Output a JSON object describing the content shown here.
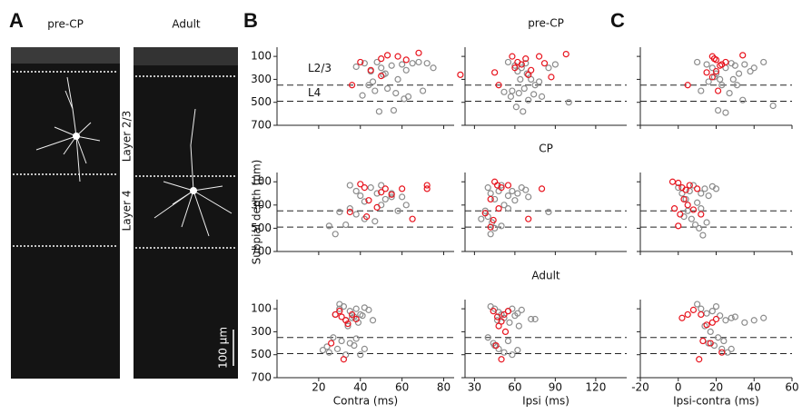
{
  "figure": {
    "panel_labels": [
      "A",
      "B",
      "C"
    ],
    "image_labels": [
      "pre-CP",
      "Adult"
    ],
    "layer_labels": [
      "Layer 2/3",
      "Layer 4"
    ],
    "scale_bar": "100 μm"
  },
  "chart_data": [
    {
      "type": "scatter",
      "xlim": [
        0,
        85
      ],
      "ylim": [
        700,
        20
      ],
      "xticks": [
        20,
        40,
        60,
        80
      ],
      "yticks": [
        100,
        300,
        500,
        700
      ],
      "x_tick_labels": false,
      "y_tick_labels": true,
      "hlines": [
        350,
        490
      ],
      "annotations": [
        "L2/3",
        "L4"
      ],
      "series": [
        {
          "color": "#8c8c8c",
          "x": [
            38,
            42,
            45,
            48,
            50,
            52,
            55,
            58,
            60,
            62,
            65,
            68,
            72,
            75,
            44,
            47,
            53,
            57,
            63,
            41,
            49,
            56,
            61,
            70,
            46,
            51
          ],
          "values": [
            190,
            160,
            230,
            150,
            200,
            250,
            180,
            300,
            170,
            220,
            160,
            150,
            160,
            200,
            350,
            400,
            380,
            420,
            450,
            440,
            580,
            570,
            470,
            400,
            320,
            260
          ]
        },
        {
          "color": "#e8141e",
          "x": [
            40,
            45,
            50,
            53,
            58,
            62,
            68,
            50,
            88,
            36
          ],
          "values": [
            150,
            220,
            120,
            90,
            100,
            130,
            70,
            270,
            260,
            350
          ]
        }
      ]
    },
    {
      "type": "scatter",
      "title": "pre-CP",
      "xlim": [
        23,
        143
      ],
      "ylim": [
        700,
        20
      ],
      "xticks": [
        30,
        60,
        90,
        120
      ],
      "yticks": [
        100,
        300,
        500,
        700
      ],
      "x_tick_labels": false,
      "y_tick_labels": false,
      "hlines": [
        350,
        490
      ],
      "series": [
        {
          "color": "#8c8c8c",
          "x": [
            55,
            60,
            62,
            65,
            68,
            70,
            72,
            75,
            58,
            63,
            67,
            78,
            85,
            90,
            52,
            57,
            61,
            66,
            70,
            74,
            80,
            100,
            64,
            69
          ],
          "values": [
            150,
            180,
            230,
            200,
            160,
            260,
            300,
            350,
            400,
            420,
            380,
            320,
            200,
            170,
            410,
            450,
            540,
            580,
            480,
            430,
            450,
            500,
            300,
            250
          ]
        },
        {
          "color": "#e8141e",
          "x": [
            58,
            62,
            65,
            68,
            72,
            78,
            82,
            98,
            45,
            60,
            70,
            87,
            48
          ],
          "values": [
            100,
            150,
            170,
            120,
            220,
            100,
            160,
            80,
            240,
            200,
            260,
            280,
            350
          ]
        }
      ]
    },
    {
      "type": "scatter",
      "xlim": [
        -20,
        60
      ],
      "ylim": [
        700,
        20
      ],
      "xticks": [
        -20,
        0,
        20,
        40,
        60
      ],
      "yticks": [
        100,
        300,
        500,
        700
      ],
      "x_tick_labels": false,
      "y_tick_labels": false,
      "hlines": [
        350,
        490
      ],
      "series": [
        {
          "color": "#8c8c8c",
          "x": [
            10,
            15,
            18,
            20,
            22,
            25,
            28,
            30,
            32,
            35,
            38,
            40,
            45,
            12,
            16,
            19,
            23,
            27,
            31,
            34,
            50,
            21,
            25,
            29
          ],
          "values": [
            150,
            170,
            200,
            250,
            300,
            200,
            160,
            180,
            250,
            170,
            230,
            200,
            150,
            400,
            320,
            280,
            350,
            420,
            350,
            480,
            530,
            570,
            590,
            300
          ]
        },
        {
          "color": "#e8141e",
          "x": [
            15,
            18,
            20,
            22,
            20,
            25,
            34,
            5,
            18,
            21,
            19,
            23
          ],
          "values": [
            240,
            100,
            130,
            180,
            230,
            150,
            90,
            350,
            280,
            400,
            120,
            170
          ]
        }
      ]
    },
    {
      "type": "scatter",
      "ylabel": "Subpial depth (μm)",
      "xlim": [
        0,
        85
      ],
      "ylim": [
        700,
        20
      ],
      "xticks": [
        20,
        40,
        60,
        80
      ],
      "yticks": [
        100,
        300,
        500,
        700
      ],
      "x_tick_labels": false,
      "y_tick_labels": true,
      "hlines": [
        350,
        490
      ],
      "series": [
        {
          "color": "#8c8c8c",
          "x": [
            35,
            38,
            40,
            42,
            45,
            48,
            50,
            52,
            55,
            58,
            60,
            35,
            38,
            42,
            47,
            30,
            33,
            25,
            28,
            55,
            62,
            50
          ],
          "values": [
            130,
            180,
            220,
            270,
            150,
            200,
            300,
            250,
            200,
            350,
            230,
            330,
            380,
            420,
            440,
            360,
            470,
            480,
            550,
            230,
            300,
            130
          ]
        },
        {
          "color": "#e8141e",
          "x": [
            40,
            42,
            44,
            50,
            52,
            55,
            60,
            72,
            35,
            43,
            48,
            65,
            72
          ],
          "values": [
            120,
            150,
            260,
            190,
            160,
            210,
            160,
            160,
            360,
            400,
            320,
            420,
            130
          ]
        }
      ]
    },
    {
      "type": "scatter",
      "title": "CP",
      "xlim": [
        23,
        143
      ],
      "ylim": [
        700,
        20
      ],
      "xticks": [
        30,
        60,
        90,
        120
      ],
      "yticks": [
        100,
        300,
        500,
        700
      ],
      "x_tick_labels": false,
      "y_tick_labels": false,
      "hlines": [
        350,
        490
      ],
      "series": [
        {
          "color": "#8c8c8c",
          "x": [
            40,
            42,
            45,
            48,
            50,
            52,
            55,
            58,
            60,
            62,
            65,
            70,
            38,
            40,
            43,
            45,
            50,
            35,
            42,
            85,
            55,
            68
          ],
          "values": [
            150,
            200,
            250,
            180,
            130,
            300,
            220,
            180,
            260,
            200,
            150,
            230,
            350,
            400,
            450,
            500,
            480,
            420,
            550,
            360,
            330,
            170
          ]
        },
        {
          "color": "#e8141e",
          "x": [
            45,
            47,
            50,
            55,
            42,
            48,
            38,
            44,
            42,
            70,
            80
          ],
          "values": [
            100,
            130,
            150,
            130,
            250,
            330,
            370,
            430,
            490,
            420,
            160
          ]
        }
      ]
    },
    {
      "type": "scatter",
      "xlim": [
        -20,
        60
      ],
      "ylim": [
        700,
        20
      ],
      "xticks": [
        -20,
        0,
        20,
        40,
        60
      ],
      "yticks": [
        100,
        300,
        500,
        700
      ],
      "x_tick_labels": false,
      "y_tick_labels": false,
      "hlines": [
        350,
        490
      ],
      "series": [
        {
          "color": "#8c8c8c",
          "x": [
            0,
            2,
            4,
            6,
            8,
            10,
            12,
            14,
            16,
            18,
            20,
            5,
            7,
            9,
            11,
            13,
            3,
            15,
            12
          ],
          "values": [
            150,
            200,
            250,
            180,
            130,
            280,
            200,
            160,
            220,
            140,
            160,
            350,
            420,
            470,
            500,
            560,
            400,
            450,
            330
          ]
        },
        {
          "color": "#e8141e",
          "x": [
            -3,
            0,
            2,
            4,
            6,
            3,
            -2,
            1,
            5,
            0,
            8,
            10,
            12
          ],
          "values": [
            100,
            110,
            150,
            170,
            130,
            250,
            330,
            380,
            300,
            480,
            340,
            160,
            380
          ]
        }
      ]
    },
    {
      "type": "scatter",
      "xlabel": "Contra (ms)",
      "xlim": [
        0,
        85
      ],
      "ylim": [
        700,
        20
      ],
      "xticks": [
        20,
        40,
        60,
        80
      ],
      "yticks": [
        100,
        300,
        500,
        700
      ],
      "x_tick_labels": true,
      "y_tick_labels": true,
      "hlines": [
        350,
        490
      ],
      "series": [
        {
          "color": "#8c8c8c",
          "x": [
            28,
            30,
            32,
            35,
            38,
            40,
            42,
            33,
            36,
            39,
            41,
            44,
            46,
            30,
            34,
            37,
            27,
            31,
            35,
            22,
            25,
            29,
            33,
            37,
            40,
            24,
            38,
            42
          ],
          "values": [
            150,
            100,
            80,
            120,
            100,
            150,
            90,
            200,
            180,
            220,
            160,
            110,
            200,
            60,
            250,
            170,
            350,
            380,
            400,
            460,
            480,
            450,
            500,
            420,
            500,
            430,
            360,
            450
          ]
        },
        {
          "color": "#e8141e",
          "x": [
            28,
            31,
            33,
            36,
            34,
            30,
            38,
            26,
            32
          ],
          "values": [
            150,
            170,
            200,
            150,
            230,
            120,
            190,
            400,
            540
          ]
        }
      ]
    },
    {
      "type": "scatter",
      "title": "Adult",
      "xlabel": "Ipsi (ms)",
      "xlim": [
        23,
        143
      ],
      "ylim": [
        700,
        20
      ],
      "xticks": [
        30,
        60,
        90,
        120
      ],
      "yticks": [
        100,
        300,
        500,
        700
      ],
      "x_tick_labels": true,
      "y_tick_labels": false,
      "hlines": [
        350,
        490
      ],
      "series": [
        {
          "color": "#8c8c8c",
          "x": [
            42,
            45,
            48,
            50,
            55,
            58,
            60,
            62,
            65,
            47,
            52,
            56,
            63,
            72,
            75,
            40,
            44,
            48,
            52,
            58,
            45,
            62,
            55
          ],
          "values": [
            80,
            100,
            130,
            150,
            120,
            100,
            160,
            140,
            110,
            200,
            180,
            220,
            250,
            190,
            190,
            350,
            400,
            450,
            480,
            500,
            420,
            460,
            380
          ]
        },
        {
          "color": "#e8141e",
          "x": [
            44,
            47,
            50,
            52,
            55,
            48,
            53,
            46,
            50
          ],
          "values": [
            120,
            170,
            210,
            150,
            120,
            250,
            300,
            420,
            540
          ]
        }
      ]
    },
    {
      "type": "scatter",
      "xlabel": "Ipsi-contra (ms)",
      "xlim": [
        -20,
        60
      ],
      "ylim": [
        700,
        20
      ],
      "xticks": [
        -20,
        0,
        20,
        40,
        60
      ],
      "yticks": [
        100,
        300,
        500,
        700
      ],
      "x_tick_labels": true,
      "y_tick_labels": false,
      "hlines": [
        350,
        490
      ],
      "series": [
        {
          "color": "#8c8c8c",
          "x": [
            10,
            12,
            15,
            18,
            20,
            22,
            25,
            28,
            30,
            35,
            40,
            45,
            14,
            17,
            21,
            24,
            16,
            19,
            23,
            26,
            28
          ],
          "values": [
            60,
            100,
            140,
            120,
            80,
            160,
            200,
            180,
            170,
            220,
            200,
            180,
            250,
            300,
            350,
            380,
            400,
            420,
            450,
            480,
            450
          ]
        },
        {
          "color": "#e8141e",
          "x": [
            2,
            5,
            8,
            12,
            15,
            18,
            20,
            13,
            17,
            23,
            11
          ],
          "values": [
            180,
            150,
            110,
            150,
            240,
            220,
            190,
            380,
            400,
            480,
            540
          ]
        }
      ]
    }
  ]
}
